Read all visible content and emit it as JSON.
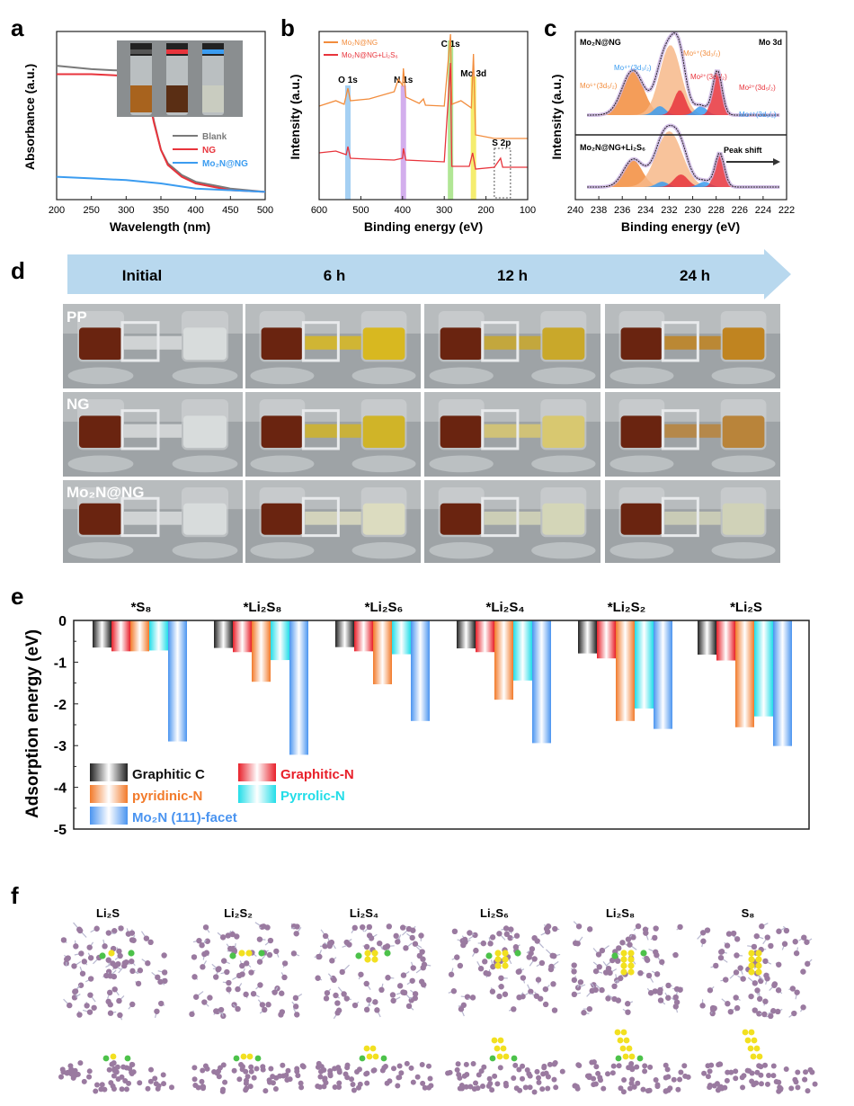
{
  "panel_labels": [
    "a",
    "b",
    "c",
    "d",
    "e",
    "f"
  ],
  "panel_a": {
    "type": "line",
    "xlabel": "Wavelength (nm)",
    "ylabel": "Absorbance (a.u.)",
    "xlim": [
      200,
      500
    ],
    "xticks": [
      "200",
      "250",
      "300",
      "350",
      "400",
      "450",
      "500"
    ],
    "legend": [
      "Blank",
      "NG",
      "Mo₂N@NG"
    ],
    "colors": [
      "#7a7a7a",
      "#e8343c",
      "#3b9cf0"
    ],
    "series": [
      {
        "name": "Blank",
        "x": [
          200,
          250,
          300,
          320,
          330,
          340,
          350,
          360,
          380,
          400,
          450,
          500
        ],
        "y": [
          0.78,
          0.76,
          0.75,
          0.73,
          0.65,
          0.45,
          0.28,
          0.2,
          0.13,
          0.09,
          0.05,
          0.03
        ]
      },
      {
        "name": "NG",
        "x": [
          200,
          250,
          300,
          320,
          330,
          340,
          350,
          360,
          380,
          400,
          450,
          500
        ],
        "y": [
          0.73,
          0.73,
          0.72,
          0.7,
          0.63,
          0.44,
          0.28,
          0.19,
          0.12,
          0.08,
          0.04,
          0.03
        ]
      },
      {
        "name": "Mo₂N@NG",
        "x": [
          200,
          250,
          300,
          350,
          400,
          450,
          500
        ],
        "y": [
          0.12,
          0.11,
          0.1,
          0.08,
          0.05,
          0.04,
          0.03
        ]
      }
    ],
    "inset_vial_caps": [
      "#555555",
      "#e8343c",
      "#3b9cf0"
    ],
    "inset_vial_liquids": [
      "#a8631e",
      "#5a2e14",
      "#c9ccc0"
    ]
  },
  "panel_b": {
    "type": "line",
    "xlabel": "Binding energy (eV)",
    "ylabel": "Intensity (a.u.)",
    "xlim": [
      600,
      100
    ],
    "xticks": [
      "600",
      "500",
      "400",
      "300",
      "200",
      "100"
    ],
    "legend": [
      "Mo₂N@NG",
      "Mo₂N@NG+Li₂S₆"
    ],
    "colors": [
      "#f28c3c",
      "#e8343c"
    ],
    "peaks": [
      {
        "label": "O 1s",
        "position": 531,
        "color": "#8ec4f0"
      },
      {
        "label": "N 1s",
        "position": 398,
        "color": "#c89ae8"
      },
      {
        "label": "C 1s",
        "position": 285,
        "color": "#9ee07a"
      },
      {
        "label": "Mo 3d",
        "position": 230,
        "color": "#f2e84a"
      },
      {
        "label": "S 2p",
        "position": 163,
        "color": "#888888"
      }
    ]
  },
  "panel_c": {
    "type": "line",
    "xlabel": "Binding energy (eV)",
    "ylabel": "Intensity (a.u.)",
    "xlim": [
      240,
      222
    ],
    "xticks": [
      "240",
      "238",
      "236",
      "234",
      "232",
      "230",
      "228",
      "226",
      "224",
      "222"
    ],
    "top_title": "Mo₂N@NG",
    "top_right": "Mo 3d",
    "bottom_title": "Mo₂N@NG+Li₂S₆",
    "peak_shift": "Peak shift",
    "annotations": [
      {
        "text": "Mo⁶⁺(3d₃/₂)",
        "color": "#f28c3c"
      },
      {
        "text": "Mo⁴⁺(3d₃/₂)",
        "color": "#3b9cf0"
      },
      {
        "text": "Mo⁶⁺(3d₅/₂)",
        "color": "#f28c3c"
      },
      {
        "text": "Mo²⁺(3d₃/₂)",
        "color": "#e8343c"
      },
      {
        "text": "Mo²⁺(3d₅/₂)",
        "color": "#e8343c"
      },
      {
        "text": "Mo⁴⁺(3d₅/₂)",
        "color": "#3b9cf0"
      }
    ]
  },
  "panel_d": {
    "timepoints": [
      "Initial",
      "6 h",
      "12 h",
      "24 h"
    ],
    "rows": [
      "PP",
      "NG",
      "Mo₂N@NG"
    ],
    "right_vial_colors": [
      [
        "#d8dcdc",
        "#d8b820",
        "#c9a82a",
        "#c08420"
      ],
      [
        "#d8dcdc",
        "#d0b428",
        "#d8c870",
        "#b9843a"
      ],
      [
        "#d8dcdc",
        "#dcdcc0",
        "#d4d6b8",
        "#d0d2b8"
      ]
    ],
    "left_vial_color": "#6a2410"
  },
  "chart_data": {
    "type": "bar",
    "title": "",
    "xlabel": "",
    "ylabel": "Adsorption energy (eV)",
    "ylim": [
      -5,
      0
    ],
    "yticks": [
      "0",
      "-1",
      "-2",
      "-3",
      "-4",
      "-5"
    ],
    "categories": [
      "*S₈",
      "*Li₂S₈",
      "*Li₂S₆",
      "*Li₂S₄",
      "*Li₂S₂",
      "*Li₂S"
    ],
    "legend_placement": "bottom-left",
    "series": [
      {
        "name": "Graphitic C",
        "color": "#222222",
        "values": [
          -0.65,
          -0.66,
          -0.64,
          -0.67,
          -0.79,
          -0.82
        ]
      },
      {
        "name": "Graphitic-N",
        "color": "#e8202a",
        "values": [
          -0.74,
          -0.76,
          -0.74,
          -0.76,
          -0.91,
          -0.96
        ]
      },
      {
        "name": "pyridinic-N",
        "color": "#f27a2a",
        "values": [
          -0.74,
          -1.47,
          -1.53,
          -1.9,
          -2.41,
          -2.56
        ]
      },
      {
        "name": "Pyrrolic-N",
        "color": "#22dde8",
        "values": [
          -0.72,
          -0.95,
          -0.81,
          -1.44,
          -2.11,
          -2.3
        ]
      },
      {
        "name": "Mo₂N (111)-facet",
        "color": "#4a94f0",
        "values": [
          -2.9,
          -3.22,
          -2.41,
          -2.94,
          -2.6,
          -3.01
        ]
      }
    ]
  },
  "panel_f": {
    "structures": [
      "Li₂S",
      "Li₂S₂",
      "Li₂S₄",
      "Li₂S₆",
      "Li₂S₈",
      "S₈"
    ],
    "atom_colors": {
      "host": "#9a7aa0",
      "bond": "#b8b8d0",
      "S": "#f2e020",
      "Li": "#4cc24a"
    }
  }
}
